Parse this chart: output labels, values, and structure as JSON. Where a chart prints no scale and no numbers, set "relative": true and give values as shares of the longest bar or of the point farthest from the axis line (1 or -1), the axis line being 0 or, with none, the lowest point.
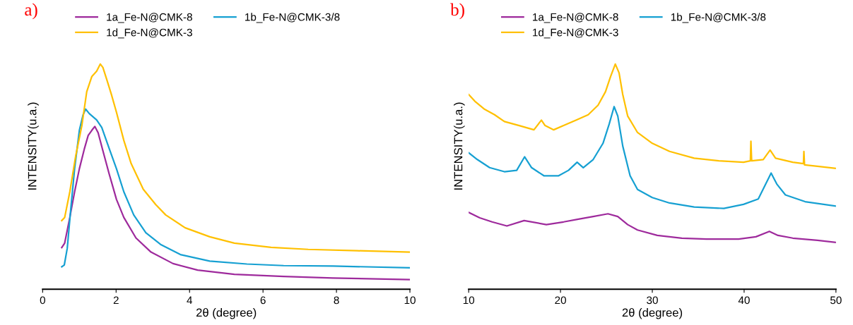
{
  "chart_data": [
    {
      "type": "line",
      "relative": true,
      "xlabel": "2θ (degree)",
      "ylabel": "INTENSITY(u.a.)",
      "annotations": [
        "a)"
      ],
      "xlim": [
        0,
        10
      ],
      "xticks": [
        0,
        2,
        4,
        6,
        8,
        10
      ],
      "legend": "top",
      "grid": false,
      "marker": "none",
      "line_style": "solid",
      "series": [
        {
          "name": "1a_Fe-N@CMK-8",
          "color": "#9e2a9c",
          "x": [
            0.52,
            0.6,
            0.74,
            0.87,
            1.0,
            1.14,
            1.24,
            1.34,
            1.42,
            1.51,
            1.64,
            1.81,
            2.01,
            2.21,
            2.54,
            2.95,
            3.55,
            4.22,
            5.22,
            6.56,
            7.9,
            10.0
          ],
          "values": [
            0.185,
            0.205,
            0.319,
            0.433,
            0.535,
            0.626,
            0.683,
            0.706,
            0.723,
            0.695,
            0.615,
            0.513,
            0.399,
            0.319,
            0.228,
            0.165,
            0.114,
            0.085,
            0.066,
            0.057,
            0.05,
            0.043
          ]
        },
        {
          "name": "1b_Fe-N@CMK-3/8",
          "color": "#16a0d2",
          "x": [
            0.52,
            0.59,
            0.67,
            0.77,
            0.87,
            1.0,
            1.1,
            1.17,
            1.27,
            1.47,
            1.61,
            1.81,
            2.01,
            2.21,
            2.48,
            2.81,
            3.21,
            3.75,
            4.55,
            5.56,
            6.56,
            7.9,
            10.0
          ],
          "values": [
            0.1,
            0.108,
            0.182,
            0.364,
            0.535,
            0.706,
            0.774,
            0.8,
            0.78,
            0.752,
            0.718,
            0.626,
            0.535,
            0.433,
            0.33,
            0.251,
            0.199,
            0.154,
            0.125,
            0.112,
            0.105,
            0.103,
            0.095
          ]
        },
        {
          "name": "1d_Fe-N@CMK-3",
          "color": "#ffc000",
          "x": [
            0.52,
            0.6,
            0.74,
            0.9,
            1.07,
            1.2,
            1.34,
            1.47,
            1.57,
            1.64,
            1.74,
            1.87,
            2.01,
            2.21,
            2.41,
            2.74,
            3.08,
            3.35,
            3.88,
            4.55,
            5.22,
            6.22,
            7.23,
            8.57,
            10.0
          ],
          "values": [
            0.305,
            0.319,
            0.433,
            0.592,
            0.729,
            0.877,
            0.945,
            0.968,
            1.0,
            0.985,
            0.934,
            0.866,
            0.786,
            0.661,
            0.558,
            0.444,
            0.376,
            0.33,
            0.273,
            0.233,
            0.205,
            0.186,
            0.177,
            0.171,
            0.165
          ]
        }
      ]
    },
    {
      "type": "line",
      "relative": true,
      "xlabel": "2θ (degree)",
      "ylabel": "INTENSITY(u.a.)",
      "annotations": [
        "b)"
      ],
      "xlim": [
        10,
        50
      ],
      "xticks": [
        10,
        20,
        30,
        40,
        50
      ],
      "legend": "top",
      "grid": false,
      "marker": "none",
      "line_style": "solid",
      "series": [
        {
          "name": "1a_Fe-N@CMK-8",
          "color": "#9e2a9c",
          "x": [
            10.0,
            11.21,
            12.55,
            14.16,
            16.04,
            18.46,
            20.34,
            21.95,
            23.56,
            25.17,
            26.24,
            27.32,
            28.39,
            30.54,
            33.22,
            35.91,
            39.4,
            41.28,
            42.75,
            43.69,
            45.3,
            47.99,
            50.0
          ],
          "values": [
            0.341,
            0.317,
            0.299,
            0.281,
            0.305,
            0.287,
            0.299,
            0.311,
            0.323,
            0.335,
            0.323,
            0.287,
            0.263,
            0.239,
            0.227,
            0.223,
            0.223,
            0.233,
            0.257,
            0.239,
            0.227,
            0.217,
            0.208
          ]
        },
        {
          "name": "1b_Fe-N@CMK-3/8",
          "color": "#16a0d2",
          "x": [
            10.0,
            10.94,
            12.28,
            13.89,
            15.23,
            16.09,
            16.85,
            18.19,
            19.8,
            20.87,
            21.81,
            22.48,
            23.56,
            24.63,
            25.3,
            25.84,
            26.24,
            26.78,
            27.58,
            28.39,
            30.0,
            31.88,
            34.56,
            37.79,
            39.93,
            41.54,
            42.35,
            42.94,
            43.56,
            44.5,
            46.64,
            50.0
          ],
          "values": [
            0.606,
            0.576,
            0.54,
            0.522,
            0.528,
            0.588,
            0.54,
            0.504,
            0.504,
            0.528,
            0.564,
            0.54,
            0.576,
            0.648,
            0.733,
            0.811,
            0.769,
            0.636,
            0.504,
            0.443,
            0.407,
            0.383,
            0.365,
            0.359,
            0.377,
            0.401,
            0.467,
            0.516,
            0.467,
            0.419,
            0.389,
            0.369
          ]
        },
        {
          "name": "1d_Fe-N@CMK-3",
          "color": "#ffc000",
          "x": [
            10.0,
            10.67,
            11.74,
            12.82,
            13.89,
            15.5,
            17.11,
            17.92,
            18.32,
            19.26,
            20.34,
            21.68,
            23.02,
            24.09,
            24.9,
            25.44,
            25.97,
            26.38,
            26.78,
            27.32,
            28.39,
            30.0,
            31.88,
            34.56,
            37.25,
            39.93,
            40.68,
            40.74,
            40.82,
            42.08,
            42.83,
            43.42,
            45.3,
            46.46,
            46.51,
            46.58,
            47.99,
            50.0
          ],
          "values": [
            0.865,
            0.835,
            0.799,
            0.775,
            0.745,
            0.727,
            0.708,
            0.751,
            0.727,
            0.708,
            0.727,
            0.751,
            0.775,
            0.817,
            0.877,
            0.943,
            1.0,
            0.961,
            0.865,
            0.769,
            0.696,
            0.648,
            0.612,
            0.582,
            0.57,
            0.564,
            0.57,
            0.657,
            0.57,
            0.576,
            0.618,
            0.582,
            0.564,
            0.558,
            0.612,
            0.552,
            0.546,
            0.537
          ]
        }
      ]
    }
  ]
}
